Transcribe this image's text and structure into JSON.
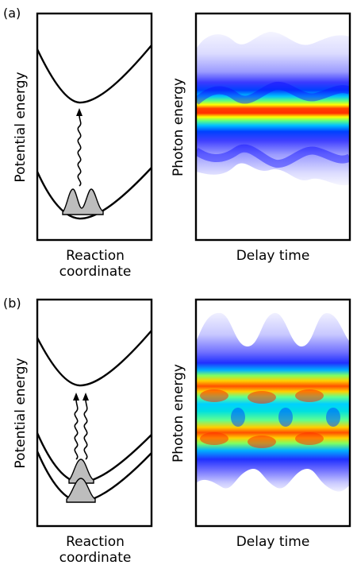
{
  "panels": [
    {
      "tag": "(a)",
      "left": {
        "ylabel": "Potential energy",
        "xlabel_line1": "Reaction",
        "xlabel_line2": "coordinate"
      },
      "right": {
        "ylabel": "Photon energy",
        "xlabel": "Delay time"
      }
    },
    {
      "tag": "(b)",
      "left": {
        "ylabel": "Potential energy",
        "xlabel_line1": "Reaction",
        "xlabel_line2": "coordinate"
      },
      "right": {
        "ylabel": "Photon energy",
        "xlabel": "Delay time"
      }
    }
  ],
  "colors": {
    "frame": "#000000",
    "wavepacket_fill": "#bdbdbd",
    "spectrum_colormap": "jet"
  }
}
